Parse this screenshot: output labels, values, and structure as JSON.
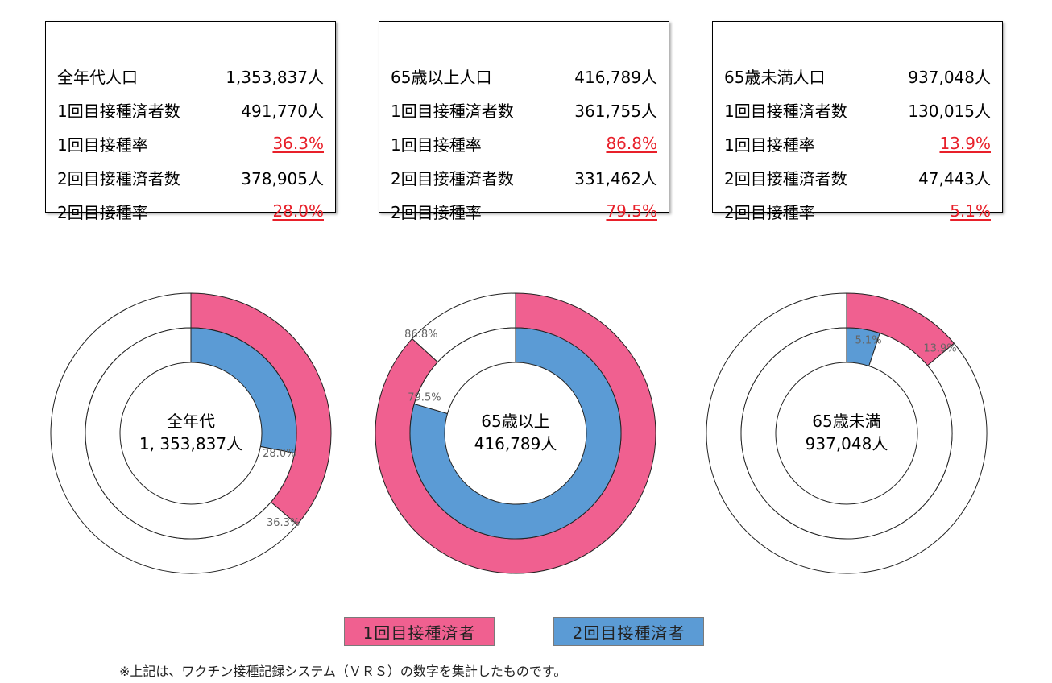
{
  "colors": {
    "first_dose": "#f06090",
    "second_dose": "#5b9bd5",
    "remainder": "#ffffff",
    "rate_text": "#e8202a"
  },
  "panels": [
    {
      "population_label": "全年代人口",
      "population_value": "1,353,837人",
      "first_count_label": "1回目接種済者数",
      "first_count_value": "491,770人",
      "first_rate_label": "1回目接種率",
      "first_rate_value": "36.3%",
      "second_count_label": "2回目接種済者数",
      "second_count_value": "378,905人",
      "second_rate_label": "2回目接種率",
      "second_rate_value": "28.0%"
    },
    {
      "population_label": "65歳以上人口",
      "population_value": "416,789人",
      "first_count_label": "1回目接種済者数",
      "first_count_value": "361,755人",
      "first_rate_label": "1回目接種率",
      "first_rate_value": "86.8%",
      "second_count_label": "2回目接種済者数",
      "second_count_value": "331,462人",
      "second_rate_label": "2回目接種率",
      "second_rate_value": "79.5%"
    },
    {
      "population_label": "65歳未満人口",
      "population_value": "937,048人",
      "first_count_label": "1回目接種済者数",
      "first_count_value": "130,015人",
      "first_rate_label": "1回目接種率",
      "first_rate_value": "13.9%",
      "second_count_label": "2回目接種済者数",
      "second_count_value": "47,443人",
      "second_rate_label": "2回目接種率",
      "second_rate_value": "5.1%"
    }
  ],
  "chart_data": [
    {
      "type": "pie",
      "center_label": "全年代",
      "center_value": "1, 353,837人",
      "series": [
        {
          "ring": "outer",
          "value": 36.3,
          "label": "36.3%"
        },
        {
          "ring": "inner",
          "value": 28.0,
          "label": "28.0%"
        }
      ]
    },
    {
      "type": "pie",
      "center_label": "65歳以上",
      "center_value": "416,789人",
      "series": [
        {
          "ring": "outer",
          "value": 86.8,
          "label": "86.8%"
        },
        {
          "ring": "inner",
          "value": 79.5,
          "label": "79.5%"
        }
      ]
    },
    {
      "type": "pie",
      "center_label": "65歳未満",
      "center_value": "937,048人",
      "series": [
        {
          "ring": "outer",
          "value": 13.9,
          "label": "13.9%"
        },
        {
          "ring": "inner",
          "value": 5.1,
          "label": "5.1%"
        }
      ]
    }
  ],
  "legend": {
    "first_dose": "1回目接種済者",
    "second_dose": "2回目接種済者"
  },
  "footnote": "※上記は、ワクチン接種記録システム（ＶＲＳ）の数字を集計したものです。"
}
